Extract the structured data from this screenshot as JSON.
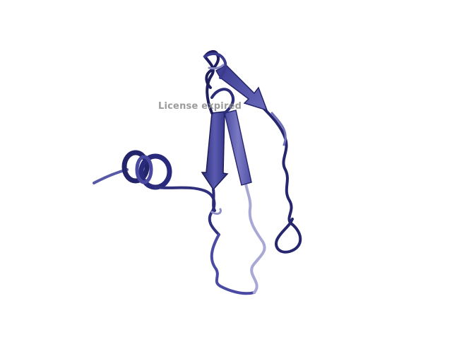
{
  "viewer": {
    "background": "#ffffff",
    "watermark_text": "License expired",
    "watermark_color": "#8a8a8a"
  },
  "structure": {
    "style": "cartoon",
    "secondary_structure": [
      "alpha-helix",
      "beta-strand",
      "beta-strand",
      "beta-strand",
      "coil"
    ],
    "colors": {
      "dark": "#1c1c58",
      "mid": "#3d3d9a",
      "light": "#6a6ab8",
      "pale": "#a8a8d4"
    }
  }
}
